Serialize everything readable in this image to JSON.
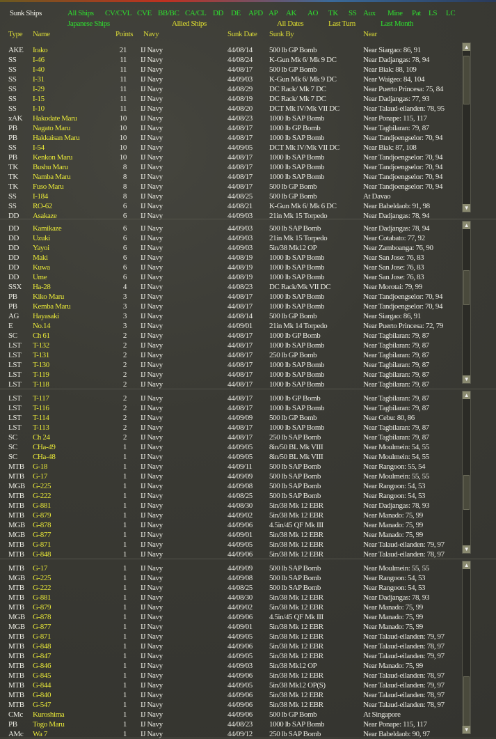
{
  "window": {
    "title": "Sunk Ships"
  },
  "filters": {
    "types": [
      "All Ships",
      "CV/CVL",
      "CVE",
      "BB/BC",
      "CA/CL",
      "DD",
      "DE",
      "APD",
      "AP",
      "AK",
      "AO",
      "TK",
      "SS",
      "Aux",
      "Mine",
      "Pat",
      "LS",
      "LC"
    ],
    "side": [
      "Japanese Ships",
      "Allied Ships"
    ],
    "dates": [
      "All Dates",
      "Last Turn",
      "Last Month"
    ]
  },
  "colors": {
    "active_filter": "#2fe02f",
    "inactive_filter": "#e0e030",
    "header": "#d8d838",
    "ship_name": "#e8e838",
    "text": "#ecece4",
    "background": "#3b3b35"
  },
  "columns": [
    "Type",
    "Name",
    "Points",
    "Navy",
    "Sunk Date",
    "Sunk By",
    "Near"
  ],
  "segments": [
    [
      [
        "AKE",
        "Irako",
        "21",
        "IJ Navy",
        "44/08/14",
        "500 lb GP Bomb",
        "Near Siargao: 86, 91"
      ],
      [
        "SS",
        "I-46",
        "11",
        "IJ Navy",
        "44/08/24",
        "K-Gun Mk 6/ Mk 9 DC",
        "Near Dadjangas: 78, 94"
      ],
      [
        "SS",
        "I-40",
        "11",
        "IJ Navy",
        "44/08/17",
        "500 lb GP Bomb",
        "Near Biak: 88, 109"
      ],
      [
        "SS",
        "I-31",
        "11",
        "IJ Navy",
        "44/09/03",
        "K-Gun Mk 6/ Mk 9 DC",
        "Near Waigeo: 84, 104"
      ],
      [
        "SS",
        "I-29",
        "11",
        "IJ Navy",
        "44/08/29",
        "DC Rack/ Mk 7 DC",
        "Near Puerto Princesa: 75, 84"
      ],
      [
        "SS",
        "I-15",
        "11",
        "IJ Navy",
        "44/08/19",
        "DC Rack/ Mk 7 DC",
        "Near Dadjangas: 77, 93"
      ],
      [
        "SS",
        "I-10",
        "11",
        "IJ Navy",
        "44/08/20",
        "DCT Mk IV/Mk VII DC",
        "Near Talaud-eilanden: 78, 95"
      ],
      [
        "xAK",
        "Hakodate Maru",
        "10",
        "IJ Navy",
        "44/08/23",
        "1000 lb SAP Bomb",
        "Near Ponape: 115, 117"
      ],
      [
        "PB",
        "Nagato Maru",
        "10",
        "IJ Navy",
        "44/08/17",
        "1000 lb GP Bomb",
        "Near Tagbilaran: 79, 87"
      ],
      [
        "PB",
        "Hakkaisan Maru",
        "10",
        "IJ Navy",
        "44/08/17",
        "1000 lb SAP Bomb",
        "Near Tandjoengselor: 70, 94"
      ],
      [
        "SS",
        "I-54",
        "10",
        "IJ Navy",
        "44/09/05",
        "DCT Mk IV/Mk VII DC",
        "Near Biak: 87, 108"
      ],
      [
        "PB",
        "Kenkon Maru",
        "10",
        "IJ Navy",
        "44/08/17",
        "1000 lb SAP Bomb",
        "Near Tandjoengselor: 70, 94"
      ],
      [
        "TK",
        "Bushu Maru",
        "8",
        "IJ Navy",
        "44/08/17",
        "1000 lb SAP Bomb",
        "Near Tandjoengselor: 70, 94"
      ],
      [
        "TK",
        "Namba Maru",
        "8",
        "IJ Navy",
        "44/08/17",
        "1000 lb SAP Bomb",
        "Near Tandjoengselor: 70, 94"
      ],
      [
        "TK",
        "Fuso Maru",
        "8",
        "IJ Navy",
        "44/08/17",
        "500 lb GP Bomb",
        "Near Tandjoengselor: 70, 94"
      ],
      [
        "SS",
        "I-184",
        "8",
        "IJ Navy",
        "44/08/25",
        "500 lb GP Bomb",
        "At Davao"
      ],
      [
        "SS",
        "RO-62",
        "6",
        "IJ Navy",
        "44/08/21",
        "K-Gun Mk 6/ Mk 6 DC",
        "Near Babeldaob: 91, 98"
      ],
      [
        "DD",
        "Asakaze",
        "6",
        "IJ Navy",
        "44/09/03",
        "21in Mk 15 Torpedo",
        "Near Dadjangas: 78, 94"
      ]
    ],
    [
      [
        "DD",
        "Kamikaze",
        "6",
        "IJ Navy",
        "44/09/03",
        "500 lb SAP Bomb",
        "Near Dadjangas: 78, 94"
      ],
      [
        "DD",
        "Uzuki",
        "6",
        "IJ Navy",
        "44/09/03",
        "21in Mk 15 Torpedo",
        "Near Cotabato: 77, 92"
      ],
      [
        "DD",
        "Yayoi",
        "6",
        "IJ Navy",
        "44/09/03",
        "5in/38 Mk12 OP",
        "Near Zamboanga: 76, 90"
      ],
      [
        "DD",
        "Maki",
        "6",
        "IJ Navy",
        "44/08/19",
        "1000 lb SAP Bomb",
        "Near San Jose: 76, 83"
      ],
      [
        "DD",
        "Kuwa",
        "6",
        "IJ Navy",
        "44/08/19",
        "1000 lb SAP Bomb",
        "Near San Jose: 76, 83"
      ],
      [
        "DD",
        "Ume",
        "6",
        "IJ Navy",
        "44/08/19",
        "1000 lb SAP Bomb",
        "Near San Jose: 76, 83"
      ],
      [
        "SSX",
        "Ha-28",
        "4",
        "IJ Navy",
        "44/08/23",
        "DC Rack/Mk VII DC",
        "Near Morotai: 79, 99"
      ],
      [
        "PB",
        "Kiko Maru",
        "3",
        "IJ Navy",
        "44/08/17",
        "1000 lb SAP Bomb",
        "Near Tandjoengselor: 70, 94"
      ],
      [
        "PB",
        "Kemba Maru",
        "3",
        "IJ Navy",
        "44/08/17",
        "1000 lb SAP Bomb",
        "Near Tandjoengselor: 70, 94"
      ],
      [
        "AG",
        "Hayasaki",
        "3",
        "IJ Navy",
        "44/08/14",
        "500 lb GP Bomb",
        "Near Siargao: 86, 91"
      ],
      [
        "E",
        "No.14",
        "3",
        "IJ Navy",
        "44/09/01",
        "21in Mk 14 Torpedo",
        "Near Puerto Princesa: 72, 79"
      ],
      [
        "SC",
        "Ch 61",
        "2",
        "IJ Navy",
        "44/08/17",
        "1000 lb GP Bomb",
        "Near Tagbilaran: 79, 87"
      ],
      [
        "LST",
        "T-132",
        "2",
        "IJ Navy",
        "44/08/17",
        "1000 lb SAP Bomb",
        "Near Tagbilaran: 79, 87"
      ],
      [
        "LST",
        "T-131",
        "2",
        "IJ Navy",
        "44/08/17",
        "250 lb GP Bomb",
        "Near Tagbilaran: 79, 87"
      ],
      [
        "LST",
        "T-130",
        "2",
        "IJ Navy",
        "44/08/17",
        "1000 lb SAP Bomb",
        "Near Tagbilaran: 79, 87"
      ],
      [
        "LST",
        "T-119",
        "2",
        "IJ Navy",
        "44/08/17",
        "1000 lb SAP Bomb",
        "Near Tagbilaran: 79, 87"
      ],
      [
        "LST",
        "T-118",
        "2",
        "IJ Navy",
        "44/08/17",
        "1000 lb SAP Bomb",
        "Near Tagbilaran: 79, 87"
      ]
    ],
    [
      [
        "LST",
        "T-117",
        "2",
        "IJ Navy",
        "44/08/17",
        "1000 lb GP Bomb",
        "Near Tagbilaran: 79, 87"
      ],
      [
        "LST",
        "T-116",
        "2",
        "IJ Navy",
        "44/08/17",
        "1000 lb SAP Bomb",
        "Near Tagbilaran: 79, 87"
      ],
      [
        "LST",
        "T-114",
        "2",
        "IJ Navy",
        "44/09/09",
        "500 lb GP Bomb",
        "Near Cebu: 80, 86"
      ],
      [
        "LST",
        "T-113",
        "2",
        "IJ Navy",
        "44/08/17",
        "1000 lb SAP Bomb",
        "Near Tagbilaran: 79, 87"
      ],
      [
        "SC",
        "Ch 24",
        "2",
        "IJ Navy",
        "44/08/17",
        "250 lb SAP Bomb",
        "Near Tagbilaran: 79, 87"
      ],
      [
        "SC",
        "CHa-49",
        "1",
        "IJ Navy",
        "44/09/05",
        "8in/50 BL Mk VIII",
        "Near Moulmein: 54, 55"
      ],
      [
        "SC",
        "CHa-48",
        "1",
        "IJ Navy",
        "44/09/05",
        "8in/50 BL Mk VIII",
        "Near Moulmein: 54, 55"
      ],
      [
        "MTB",
        "G-18",
        "1",
        "IJ Navy",
        "44/09/11",
        "500 lb SAP Bomb",
        "Near Rangoon: 55, 54"
      ],
      [
        "MTB",
        "G-17",
        "1",
        "IJ Navy",
        "44/09/09",
        "500 lb SAP Bomb",
        "Near Moulmein: 55, 55"
      ],
      [
        "MGB",
        "G-225",
        "1",
        "IJ Navy",
        "44/09/08",
        "500 lb SAP Bomb",
        "Near Rangoon: 54, 53"
      ],
      [
        "MTB",
        "G-222",
        "1",
        "IJ Navy",
        "44/08/25",
        "500 lb SAP Bomb",
        "Near Rangoon: 54, 53"
      ],
      [
        "MTB",
        "G-881",
        "1",
        "IJ Navy",
        "44/08/30",
        "5in/38 Mk 12 EBR",
        "Near Dadjangas: 78, 93"
      ],
      [
        "MTB",
        "G-879",
        "1",
        "IJ Navy",
        "44/09/02",
        "5in/38 Mk 12 EBR",
        "Near Manado: 75, 99"
      ],
      [
        "MGB",
        "G-878",
        "1",
        "IJ Navy",
        "44/09/06",
        "4.5in/45 QF Mk III",
        "Near Manado: 75, 99"
      ],
      [
        "MGB",
        "G-877",
        "1",
        "IJ Navy",
        "44/09/01",
        "5in/38 Mk 12 EBR",
        "Near Manado: 75, 99"
      ],
      [
        "MTB",
        "G-871",
        "1",
        "IJ Navy",
        "44/09/05",
        "5in/38 Mk 12 EBR",
        "Near Talaud-eilanden: 79, 97"
      ],
      [
        "MTB",
        "G-848",
        "1",
        "IJ Navy",
        "44/09/06",
        "5in/38 Mk 12 EBR",
        "Near Talaud-eilanden: 78, 97"
      ]
    ],
    [
      [
        "MTB",
        "G-17",
        "1",
        "IJ Navy",
        "44/09/09",
        "500 lb SAP Bomb",
        "Near Moulmein: 55, 55"
      ],
      [
        "MGB",
        "G-225",
        "1",
        "IJ Navy",
        "44/09/08",
        "500 lb SAP Bomb",
        "Near Rangoon: 54, 53"
      ],
      [
        "MTB",
        "G-222",
        "1",
        "IJ Navy",
        "44/08/25",
        "500 lb SAP Bomb",
        "Near Rangoon: 54, 53"
      ],
      [
        "MTB",
        "G-881",
        "1",
        "IJ Navy",
        "44/08/30",
        "5in/38 Mk 12 EBR",
        "Near Dadjangas: 78, 93"
      ],
      [
        "MTB",
        "G-879",
        "1",
        "IJ Navy",
        "44/09/02",
        "5in/38 Mk 12 EBR",
        "Near Manado: 75, 99"
      ],
      [
        "MGB",
        "G-878",
        "1",
        "IJ Navy",
        "44/09/06",
        "4.5in/45 QF Mk III",
        "Near Manado: 75, 99"
      ],
      [
        "MGB",
        "G-877",
        "1",
        "IJ Navy",
        "44/09/01",
        "5in/38 Mk 12 EBR",
        "Near Manado: 75, 99"
      ],
      [
        "MTB",
        "G-871",
        "1",
        "IJ Navy",
        "44/09/05",
        "5in/38 Mk 12 EBR",
        "Near Talaud-eilanden: 79, 97"
      ],
      [
        "MTB",
        "G-848",
        "1",
        "IJ Navy",
        "44/09/06",
        "5in/38 Mk 12 EBR",
        "Near Talaud-eilanden: 78, 97"
      ],
      [
        "MTB",
        "G-847",
        "1",
        "IJ Navy",
        "44/09/05",
        "5in/38 Mk 12 EBR",
        "Near Talaud-eilanden: 79, 97"
      ],
      [
        "MTB",
        "G-846",
        "1",
        "IJ Navy",
        "44/09/03",
        "5in/38 Mk12 OP",
        "Near Manado: 75, 99"
      ],
      [
        "MTB",
        "G-845",
        "1",
        "IJ Navy",
        "44/09/06",
        "5in/38 Mk 12 EBR",
        "Near Talaud-eilanden: 78, 97"
      ],
      [
        "MTB",
        "G-844",
        "1",
        "IJ Navy",
        "44/09/05",
        "5in/38 Mk12 OP(S)",
        "Near Talaud-eilanden: 79, 97"
      ],
      [
        "MTB",
        "G-840",
        "1",
        "IJ Navy",
        "44/09/06",
        "5in/38 Mk 12 EBR",
        "Near Talaud-eilanden: 78, 97"
      ],
      [
        "MTB",
        "G-547",
        "1",
        "IJ Navy",
        "44/09/06",
        "5in/38 Mk 12 EBR",
        "Near Talaud-eilanden: 78, 97"
      ],
      [
        "CMc",
        "Kuroshima",
        "1",
        "IJ Navy",
        "44/09/06",
        "500 lb GP Bomb",
        "At Singapore"
      ],
      [
        "PB",
        "Togo Maru",
        "1",
        "IJ Navy",
        "44/08/23",
        "1000 lb SAP Bomb",
        "Near Ponape: 115, 117"
      ],
      [
        "AMc",
        "Wa 7",
        "1",
        "IJ Navy",
        "44/09/12",
        "250 lb SAP Bomb",
        "Near Babeldaob: 90, 97"
      ]
    ]
  ]
}
